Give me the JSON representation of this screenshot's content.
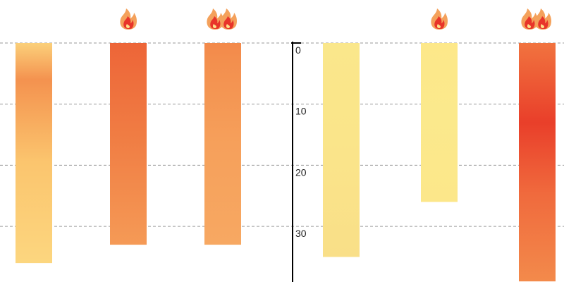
{
  "chart_data": {
    "type": "bar",
    "title": "",
    "xlabel": "",
    "ylabel": "",
    "y_axis": {
      "inverted": true,
      "ylim": [
        0,
        39
      ],
      "ticks": [
        {
          "value": 0,
          "label": "0"
        },
        {
          "value": 10,
          "label": "10"
        },
        {
          "value": 20,
          "label": "20"
        },
        {
          "value": 30,
          "label": "30"
        }
      ],
      "grid": true,
      "grid_style": "dashed"
    },
    "bars": [
      {
        "value": 36,
        "fire_icons": 0,
        "hot_peak": 6,
        "gradient": [
          "#fbd07a",
          "#f4924f",
          "#fbc56e",
          "#fcd67f"
        ]
      },
      {
        "value": 33,
        "fire_icons": 1,
        "hot_peak": 0,
        "gradient": [
          "#e4332a",
          "#ed6538",
          "#f07c43",
          "#f59a56"
        ]
      },
      {
        "value": 33,
        "fire_icons": 2,
        "hot_peak": 3,
        "gradient": [
          "#f3894a",
          "#f38f4e",
          "#f6a05b",
          "#f7a862"
        ]
      },
      {
        "value": 35,
        "fire_icons": 0,
        "hot_peak": 0,
        "gradient": [
          "#f9de88",
          "#fae78b",
          "#fae58a",
          "#f9df88"
        ]
      },
      {
        "value": 26,
        "fire_icons": 1,
        "hot_peak": 0,
        "gradient": [
          "#f6a45e",
          "#fde889",
          "#fbe98c",
          "#fce78a"
        ]
      },
      {
        "value": 39,
        "fire_icons": 2,
        "hot_peak": 13,
        "gradient": [
          "#f1733f",
          "#e93f2a",
          "#f06a3d",
          "#f38a4b"
        ]
      }
    ]
  }
}
